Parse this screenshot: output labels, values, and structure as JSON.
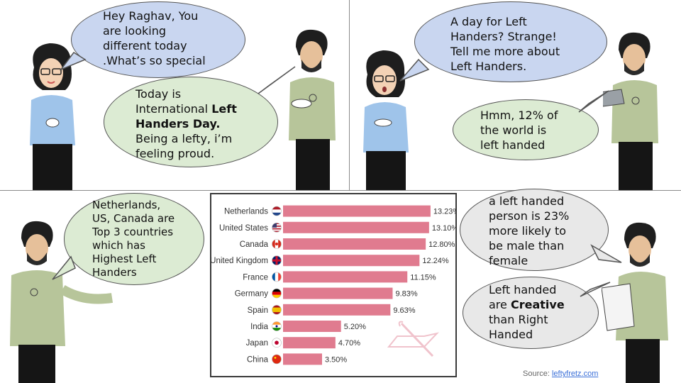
{
  "panel1": {
    "bubble_woman": [
      "Hey Raghav, You",
      "are looking",
      "different today",
      ".What’s so special"
    ],
    "bubble_man": {
      "line1": "Today is",
      "line2_pre": "International ",
      "line2_bold": "Left",
      "line3_bold": "Handers Day.",
      "line4": "Being a lefty, i’m",
      "line5": "feeling proud."
    }
  },
  "panel2": {
    "bubble_woman": [
      "A day for Left",
      "Handers? Strange!",
      "Tell me more about",
      "Left Handers."
    ],
    "bubble_man": [
      "Hmm, 12% of",
      "the world is",
      "left handed"
    ]
  },
  "panel3": {
    "bubble_man": [
      "Netherlands,",
      "US, Canada are",
      "Top 3 countries",
      "which has",
      "Highest Left",
      "Handers"
    ]
  },
  "panel4": {
    "bubble_top": [
      "a left handed",
      "person is 23%",
      "more likely to",
      "be male than",
      "female"
    ],
    "bubble_bottom": {
      "line1": "Left handed",
      "line2_pre": "are ",
      "line2_bold": "Creative",
      "line3": "than Right",
      "line4": "Handed"
    }
  },
  "source": {
    "label": "Source: ",
    "link": "leftyfretz.com"
  },
  "colors": {
    "bar": "#e07b8f",
    "bubble_blue": "#c9d6f0",
    "bubble_green": "#dcebd3",
    "bubble_gray": "#e8e8e8"
  },
  "chart_data": {
    "type": "bar",
    "orientation": "horizontal",
    "categories": [
      "Netherlands",
      "United States",
      "Canada",
      "United Kingdom",
      "France",
      "Germany",
      "Spain",
      "India",
      "Japan",
      "China"
    ],
    "values": [
      13.23,
      13.1,
      12.8,
      12.24,
      11.15,
      9.83,
      9.63,
      5.2,
      4.7,
      3.5
    ],
    "value_labels": [
      "13.23%",
      "13.10%",
      "12.80%",
      "12.24%",
      "11.15%",
      "9.83%",
      "9.63%",
      "5.20%",
      "4.70%",
      "3.50%"
    ],
    "flag_icons": [
      "netherlands-flag-icon",
      "usa-flag-icon",
      "canada-flag-icon",
      "uk-flag-icon",
      "france-flag-icon",
      "germany-flag-icon",
      "spain-flag-icon",
      "india-flag-icon",
      "japan-flag-icon",
      "china-flag-icon"
    ],
    "xlim": [
      0,
      14
    ],
    "title": "",
    "xlabel": "",
    "ylabel": ""
  }
}
